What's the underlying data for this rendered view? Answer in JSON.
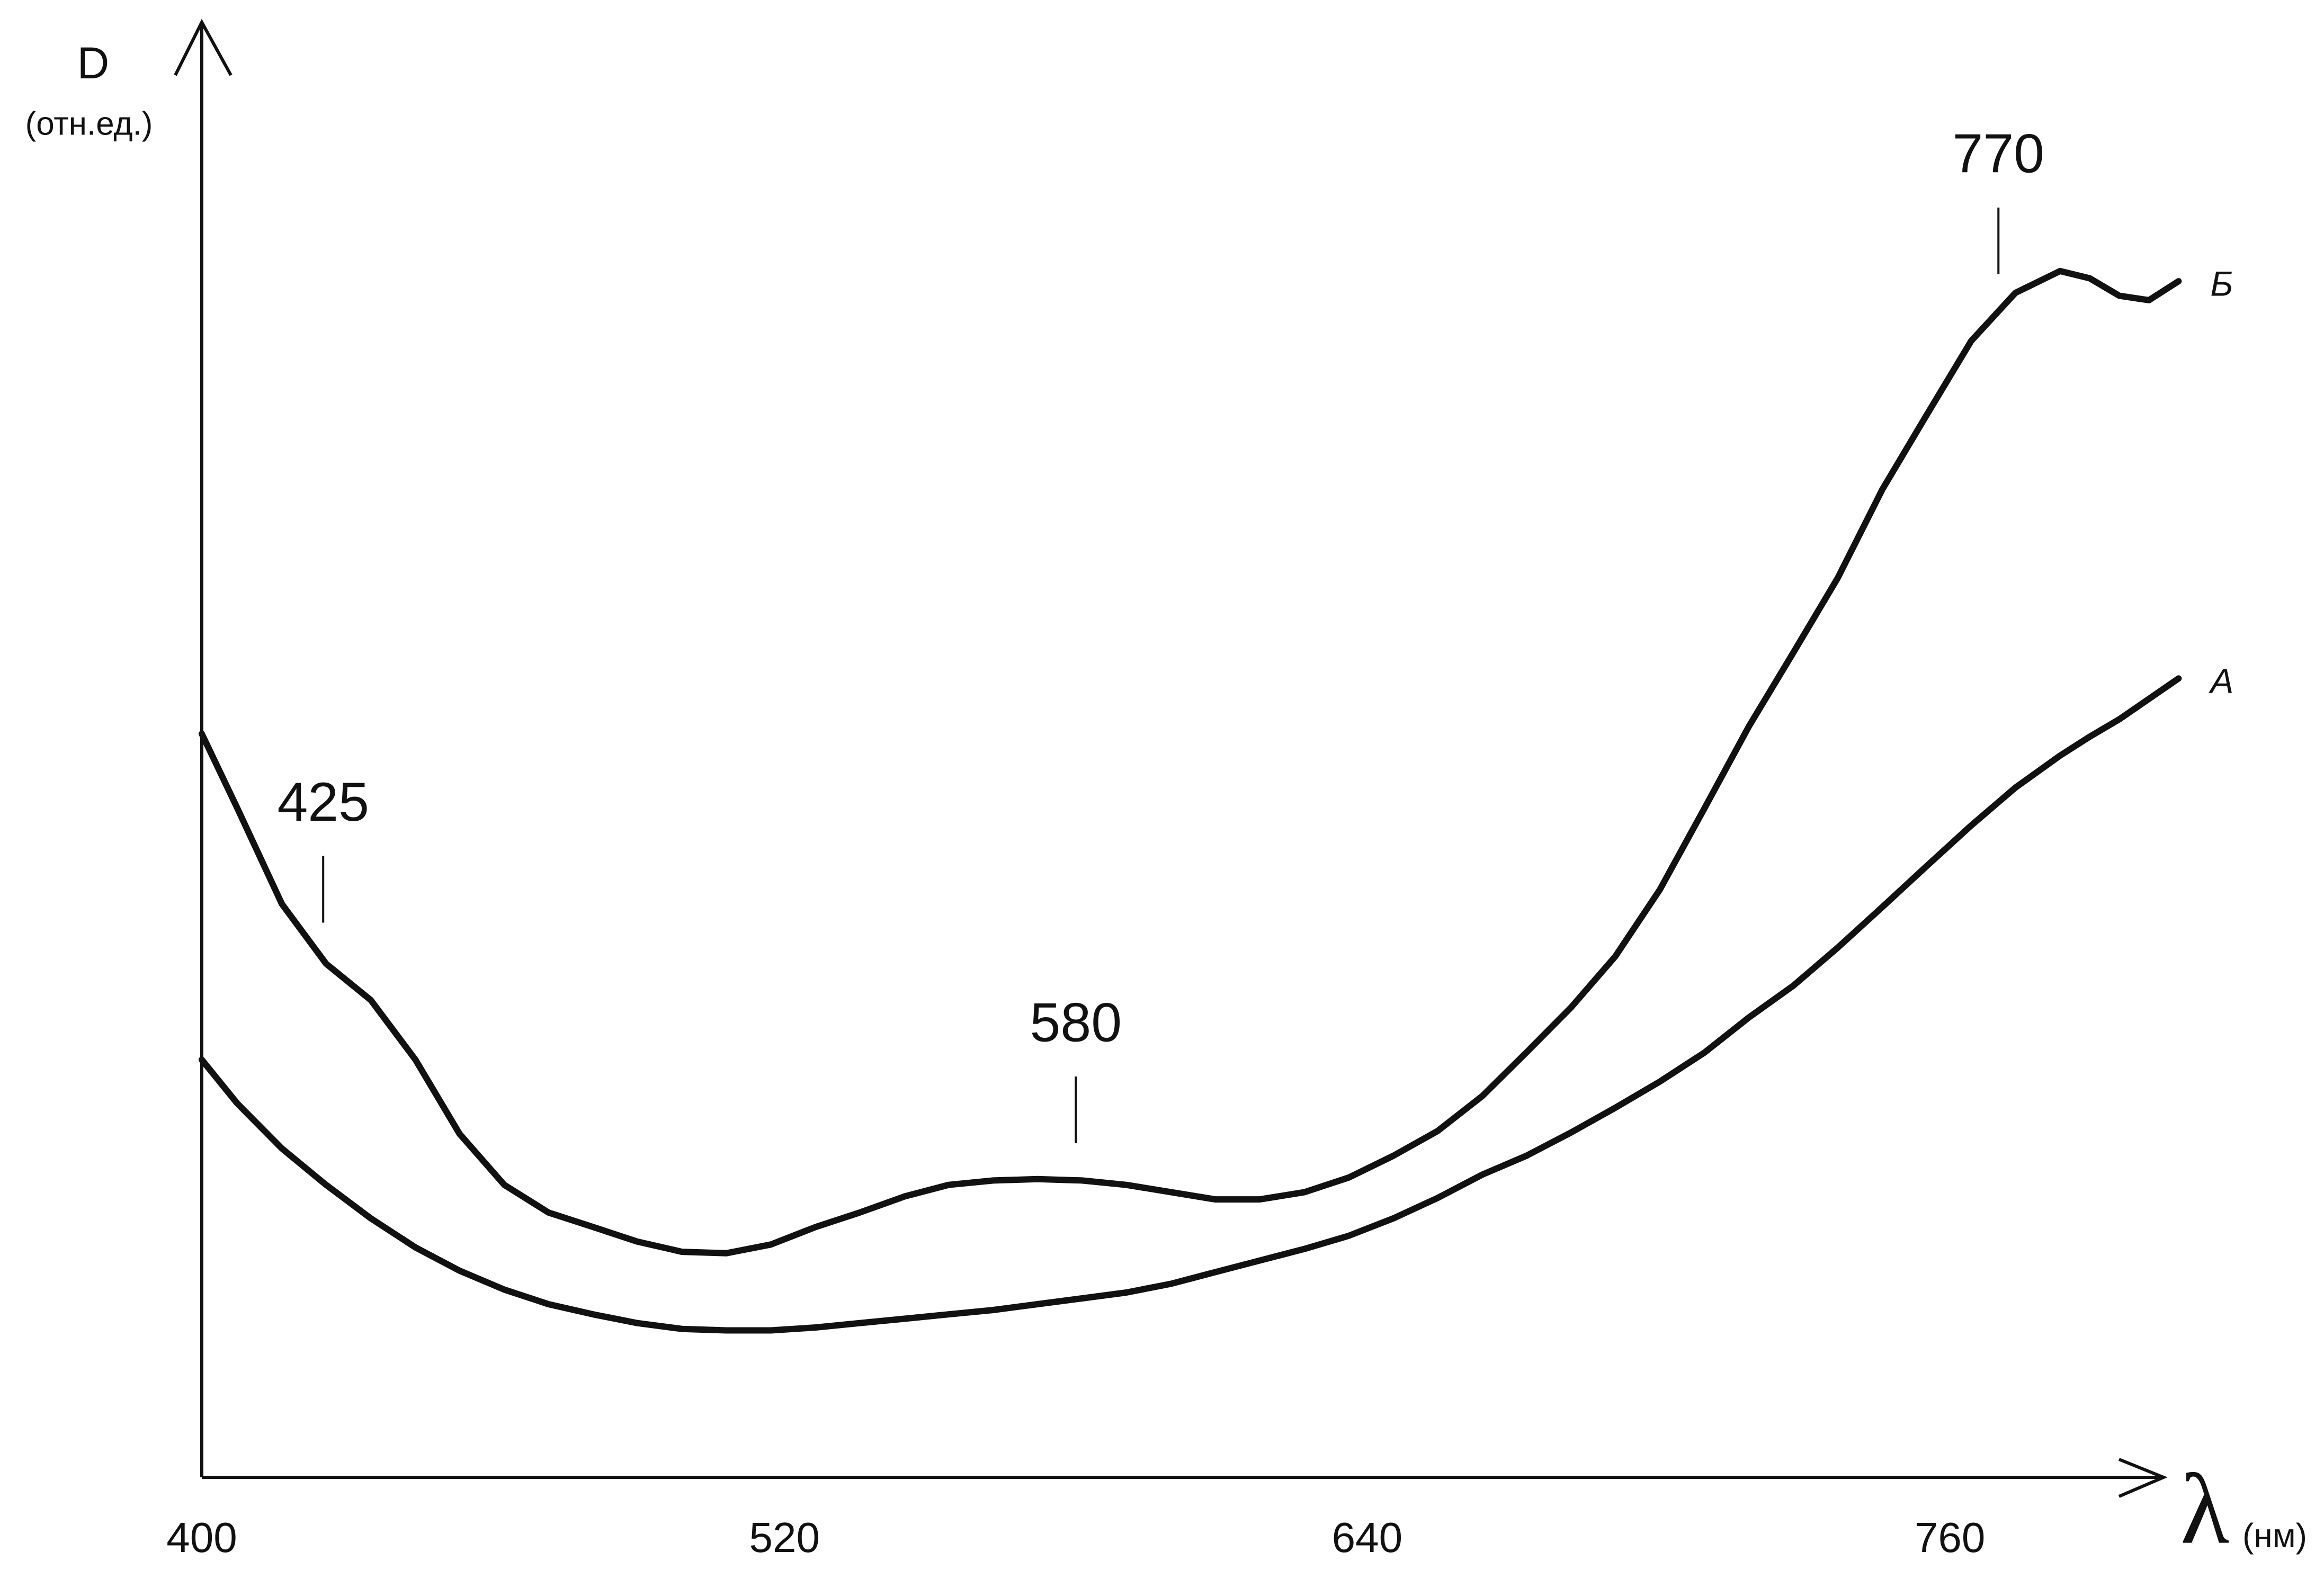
{
  "chart_data": {
    "type": "line",
    "ylabel": "D",
    "ylabel_unit": "(отн.ед.)",
    "xlabel": "λ",
    "xlabel_unit": "(нм)",
    "x": [
      400,
      407.3,
      416.5,
      425.6,
      434.8,
      444.0,
      453.1,
      462.3,
      471.4,
      480.6,
      489.7,
      498.9,
      508.0,
      517.2,
      526.4,
      535.5,
      544.7,
      553.8,
      563.0,
      572.1,
      581.3,
      590.4,
      599.6,
      608.7,
      617.9,
      627.1,
      636.2,
      645.4,
      654.5,
      663.7,
      672.8,
      682.0,
      691.1,
      700.3,
      709.5,
      718.6,
      727.8,
      736.9,
      746.1,
      755.2,
      764.4,
      773.5,
      782.7,
      788.8,
      794.9,
      801.0,
      807.1
    ],
    "series": [
      {
        "name": "Б",
        "color": "#111111",
        "values": [
          51.1,
          46.0,
          39.4,
          35.3,
          32.8,
          28.7,
          23.6,
          20.1,
          18.2,
          17.2,
          16.2,
          15.5,
          15.4,
          16.0,
          17.2,
          18.2,
          19.3,
          20.1,
          20.4,
          20.5,
          20.4,
          20.1,
          19.6,
          19.1,
          19.1,
          19.6,
          20.6,
          22.1,
          23.8,
          26.2,
          29.2,
          32.3,
          35.8,
          40.4,
          46.0,
          51.6,
          56.7,
          61.8,
          67.9,
          73.0,
          78.1,
          81.4,
          82.9,
          82.4,
          81.2,
          80.9,
          82.2
        ]
      },
      {
        "name": "А",
        "color": "#111111",
        "values": [
          28.7,
          25.7,
          22.6,
          20.1,
          17.8,
          15.8,
          14.2,
          12.9,
          11.9,
          11.2,
          10.6,
          10.2,
          10.1,
          10.1,
          10.3,
          10.6,
          10.9,
          11.2,
          11.5,
          11.9,
          12.3,
          12.7,
          13.3,
          14.1,
          14.9,
          15.7,
          16.6,
          17.8,
          19.2,
          20.8,
          22.1,
          23.7,
          25.4,
          27.2,
          29.2,
          31.6,
          33.8,
          36.4,
          39.2,
          42.0,
          44.8,
          47.4,
          49.6,
          50.9,
          52.1,
          53.5,
          54.9
        ]
      }
    ],
    "annotations": [
      {
        "text": "425",
        "x": 425
      },
      {
        "text": "580",
        "x": 580
      },
      {
        "text": "770",
        "x": 770
      }
    ],
    "xlim": [
      400,
      804
    ],
    "ylim": [
      0,
      100
    ],
    "xticks": [
      400,
      520,
      640,
      760
    ],
    "grid": false
  }
}
